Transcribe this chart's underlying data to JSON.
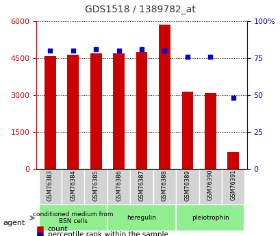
{
  "title": "GDS1518 / 1389782_at",
  "samples": [
    "GSM76383",
    "GSM76384",
    "GSM76385",
    "GSM76386",
    "GSM76387",
    "GSM76388",
    "GSM76389",
    "GSM76390",
    "GSM76391"
  ],
  "counts": [
    4600,
    4650,
    4700,
    4700,
    4750,
    5850,
    3150,
    3100,
    700
  ],
  "percentiles": [
    80,
    80,
    81,
    80,
    81,
    80,
    76,
    76,
    48
  ],
  "ylim_left": [
    0,
    6000
  ],
  "ylim_right": [
    0,
    100
  ],
  "yticks_left": [
    0,
    1500,
    3000,
    4500,
    6000
  ],
  "yticks_right": [
    0,
    25,
    50,
    75,
    100
  ],
  "ytick_labels_left": [
    "0",
    "1500",
    "3000",
    "4500",
    "6000"
  ],
  "ytick_labels_right": [
    "0",
    "25",
    "50",
    "75",
    "100%"
  ],
  "agents": [
    {
      "label": "conditioned medium from\nBSN cells",
      "start": 0,
      "end": 3
    },
    {
      "label": "heregulin",
      "start": 3,
      "end": 6
    },
    {
      "label": "pleiotrophin",
      "start": 6,
      "end": 9
    }
  ],
  "bar_color": "#cc0000",
  "dot_color": "#0000cc",
  "agent_bg_color": "#90ee90",
  "sample_bg_color": "#d3d3d3",
  "legend_count_color": "#cc0000",
  "legend_dot_color": "#0000cc",
  "title_color": "#333333",
  "left_axis_color": "#cc0000",
  "right_axis_color": "#0000cc"
}
